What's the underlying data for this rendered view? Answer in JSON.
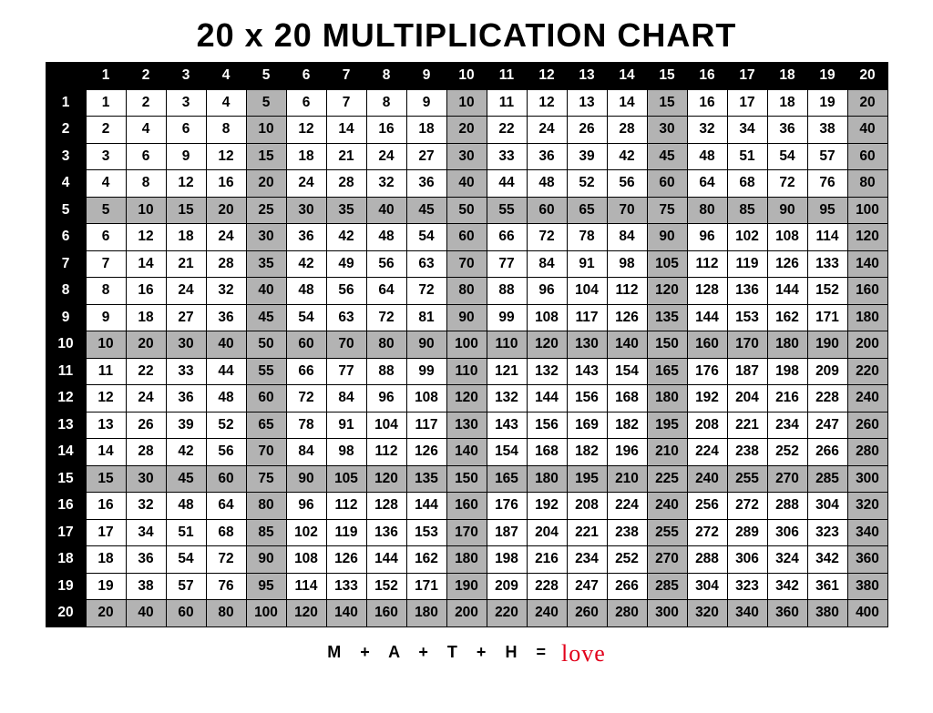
{
  "title": "20 x 20 MULTIPLICATION CHART",
  "title_fontsize": 36,
  "footer": {
    "letters": [
      "M",
      "+",
      "A",
      "+",
      "T",
      "+",
      "H",
      "="
    ],
    "love": "love"
  },
  "chart": {
    "type": "table",
    "size": 20,
    "header_bg": "#000000",
    "header_fg": "#ffffff",
    "cell_bg_normal": "#ffffff",
    "cell_bg_highlight": "#b3b3b3",
    "cell_fg": "#000000",
    "border_color": "#000000",
    "highlight_every": 5,
    "col_headers": [
      1,
      2,
      3,
      4,
      5,
      6,
      7,
      8,
      9,
      10,
      11,
      12,
      13,
      14,
      15,
      16,
      17,
      18,
      19,
      20
    ],
    "row_headers": [
      1,
      2,
      3,
      4,
      5,
      6,
      7,
      8,
      9,
      10,
      11,
      12,
      13,
      14,
      15,
      16,
      17,
      18,
      19,
      20
    ],
    "rows": [
      [
        1,
        2,
        3,
        4,
        5,
        6,
        7,
        8,
        9,
        10,
        11,
        12,
        13,
        14,
        15,
        16,
        17,
        18,
        19,
        20
      ],
      [
        2,
        4,
        6,
        8,
        10,
        12,
        14,
        16,
        18,
        20,
        22,
        24,
        26,
        28,
        30,
        32,
        34,
        36,
        38,
        40
      ],
      [
        3,
        6,
        9,
        12,
        15,
        18,
        21,
        24,
        27,
        30,
        33,
        36,
        39,
        42,
        45,
        48,
        51,
        54,
        57,
        60
      ],
      [
        4,
        8,
        12,
        16,
        20,
        24,
        28,
        32,
        36,
        40,
        44,
        48,
        52,
        56,
        60,
        64,
        68,
        72,
        76,
        80
      ],
      [
        5,
        10,
        15,
        20,
        25,
        30,
        35,
        40,
        45,
        50,
        55,
        60,
        65,
        70,
        75,
        80,
        85,
        90,
        95,
        100
      ],
      [
        6,
        12,
        18,
        24,
        30,
        36,
        42,
        48,
        54,
        60,
        66,
        72,
        78,
        84,
        90,
        96,
        102,
        108,
        114,
        120
      ],
      [
        7,
        14,
        21,
        28,
        35,
        42,
        49,
        56,
        63,
        70,
        77,
        84,
        91,
        98,
        105,
        112,
        119,
        126,
        133,
        140
      ],
      [
        8,
        16,
        24,
        32,
        40,
        48,
        56,
        64,
        72,
        80,
        88,
        96,
        104,
        112,
        120,
        128,
        136,
        144,
        152,
        160
      ],
      [
        9,
        18,
        27,
        36,
        45,
        54,
        63,
        72,
        81,
        90,
        99,
        108,
        117,
        126,
        135,
        144,
        153,
        162,
        171,
        180
      ],
      [
        10,
        20,
        30,
        40,
        50,
        60,
        70,
        80,
        90,
        100,
        110,
        120,
        130,
        140,
        150,
        160,
        170,
        180,
        190,
        200
      ],
      [
        11,
        22,
        33,
        44,
        55,
        66,
        77,
        88,
        99,
        110,
        121,
        132,
        143,
        154,
        165,
        176,
        187,
        198,
        209,
        220
      ],
      [
        12,
        24,
        36,
        48,
        60,
        72,
        84,
        96,
        108,
        120,
        132,
        144,
        156,
        168,
        180,
        192,
        204,
        216,
        228,
        240
      ],
      [
        13,
        26,
        39,
        52,
        65,
        78,
        91,
        104,
        117,
        130,
        143,
        156,
        169,
        182,
        195,
        208,
        221,
        234,
        247,
        260
      ],
      [
        14,
        28,
        42,
        56,
        70,
        84,
        98,
        112,
        126,
        140,
        154,
        168,
        182,
        196,
        210,
        224,
        238,
        252,
        266,
        280
      ],
      [
        15,
        30,
        45,
        60,
        75,
        90,
        105,
        120,
        135,
        150,
        165,
        180,
        195,
        210,
        225,
        240,
        255,
        270,
        285,
        300
      ],
      [
        16,
        32,
        48,
        64,
        80,
        96,
        112,
        128,
        144,
        160,
        176,
        192,
        208,
        224,
        240,
        256,
        272,
        288,
        304,
        320
      ],
      [
        17,
        34,
        51,
        68,
        85,
        102,
        119,
        136,
        153,
        170,
        187,
        204,
        221,
        238,
        255,
        272,
        289,
        306,
        323,
        340
      ],
      [
        18,
        36,
        54,
        72,
        90,
        108,
        126,
        144,
        162,
        180,
        198,
        216,
        234,
        252,
        270,
        288,
        306,
        324,
        342,
        360
      ],
      [
        19,
        38,
        57,
        76,
        95,
        114,
        133,
        152,
        171,
        190,
        209,
        228,
        247,
        266,
        285,
        304,
        323,
        342,
        361,
        380
      ],
      [
        20,
        40,
        60,
        80,
        100,
        120,
        140,
        160,
        180,
        200,
        220,
        240,
        260,
        280,
        300,
        320,
        340,
        360,
        380,
        400
      ]
    ]
  }
}
